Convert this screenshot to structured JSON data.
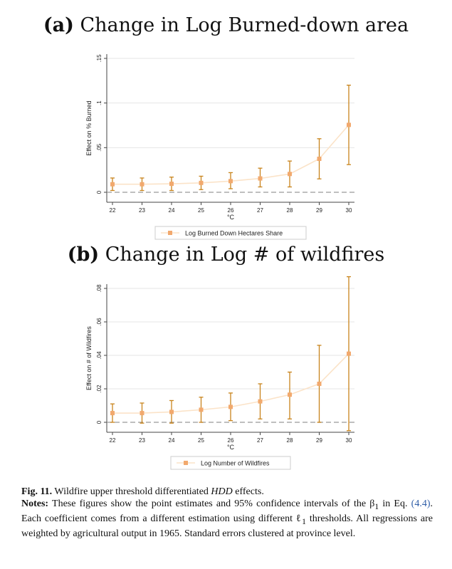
{
  "panel_a": {
    "letter": "(a)",
    "title": "Change in Log Burned-down area"
  },
  "panel_b": {
    "letter": "(b)",
    "title": "Change in Log # of wildfires"
  },
  "caption": {
    "fig_label": "Fig. 11.",
    "fig_text_before": "Wildfire upper threshold differentiated ",
    "fig_text_italic": "HDD",
    "fig_text_after": " effects.",
    "notes_label": "Notes:",
    "notes_text_1": "These figures show the point estimates and 95% confidence intervals of the β",
    "notes_sub_1": "1",
    "notes_text_2": " in Eq. ",
    "notes_ref": "(4.4)",
    "notes_text_3": ". Each coefficient comes from a different estimation using different ℓ",
    "notes_sub_2": "1",
    "notes_text_4": " thresholds. All regressions are weighted by agricultural output in 1965. Standard errors clustered at province level."
  },
  "colors": {
    "marker": "#f2a96e",
    "ci": "#c8841c",
    "line": "#fbe3c8",
    "grid": "#e6e6e6",
    "zero": "#999999"
  },
  "chart_data": [
    {
      "type": "scatter",
      "title": "(a) Change in Log Burned-down area",
      "xlabel": "°C",
      "ylabel": "Effect on % Burned",
      "x": [
        22,
        23,
        24,
        25,
        26,
        27,
        28,
        29,
        30
      ],
      "xlim": [
        22,
        30
      ],
      "ylim": [
        0,
        0.15
      ],
      "yticks": [
        0,
        0.05,
        0.1,
        0.15
      ],
      "ytick_labels": [
        "0",
        ".05",
        ".1",
        ".15"
      ],
      "grid": true,
      "legend_position": "bottom",
      "series": [
        {
          "name": "Log Burned Down Hectares Share",
          "values": [
            0.009,
            0.009,
            0.0095,
            0.0105,
            0.0125,
            0.0155,
            0.0205,
            0.0375,
            0.0755
          ],
          "ci_low": [
            0.002,
            0.002,
            0.002,
            0.003,
            0.004,
            0.006,
            0.006,
            0.015,
            0.031
          ],
          "ci_high": [
            0.016,
            0.016,
            0.017,
            0.018,
            0.022,
            0.027,
            0.035,
            0.06,
            0.12
          ]
        }
      ]
    },
    {
      "type": "scatter",
      "title": "(b) Change in Log # of wildfires",
      "xlabel": "°C",
      "ylabel": "Effect on # of Wildfires",
      "x": [
        22,
        23,
        24,
        25,
        26,
        27,
        28,
        29,
        30
      ],
      "xlim": [
        22,
        30
      ],
      "ylim": [
        0,
        0.08
      ],
      "yticks": [
        0,
        0.02,
        0.04,
        0.06,
        0.08
      ],
      "ytick_labels": [
        "0",
        ".02",
        ".04",
        ".06",
        ".08"
      ],
      "grid": true,
      "legend_position": "bottom",
      "series": [
        {
          "name": "Log Number of Wildfires",
          "values": [
            0.0055,
            0.0055,
            0.0062,
            0.0075,
            0.0092,
            0.0125,
            0.0165,
            0.023,
            0.041
          ],
          "ci_low": [
            0.0,
            -0.0005,
            -0.0005,
            0.0,
            0.001,
            0.002,
            0.002,
            0.0,
            -0.005
          ],
          "ci_high": [
            0.011,
            0.0115,
            0.013,
            0.015,
            0.0175,
            0.023,
            0.03,
            0.046,
            0.087
          ]
        }
      ]
    }
  ]
}
